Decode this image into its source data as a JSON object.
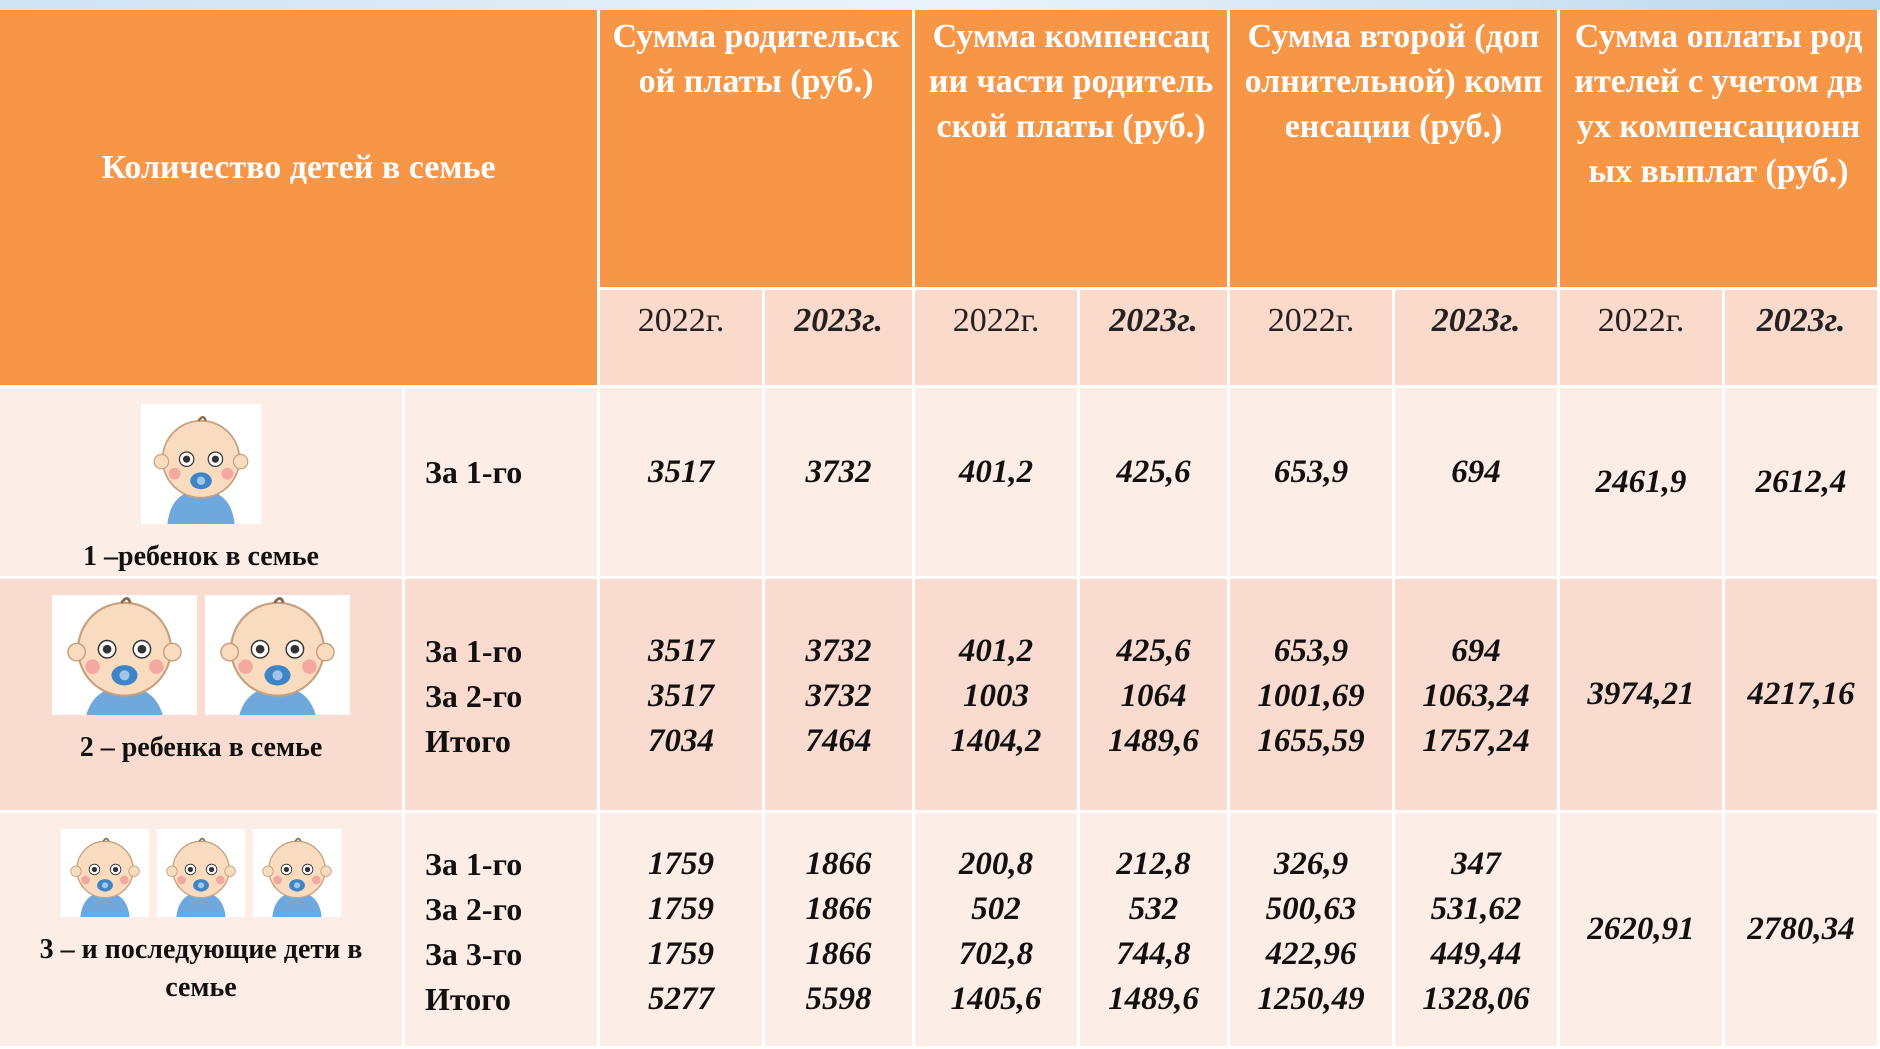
{
  "table": {
    "header": {
      "row_label": "Количество детей в семье",
      "groups": [
        "Сумма родительской платы (руб.)",
        "Сумма компенсации части родительской платы (руб.)",
        "Сумма второй (дополнительной) компенсации (руб.)",
        "Сумма оплаты родителей с учетом двух компенсационных выплат (руб.)"
      ],
      "years": [
        "2022г.",
        "2023г.",
        "2022г.",
        "2023г.",
        "2022г.",
        "2023г.",
        "2022г.",
        "2023г."
      ]
    },
    "rows": [
      {
        "label": "1 –ребенок в семье",
        "lines": [
          {
            "label": "За 1-го",
            "values": [
              "3517",
              "3732",
              "401,2",
              "425,6",
              "653,9",
              "694"
            ]
          }
        ],
        "final": [
          "2461,9",
          "2612,4"
        ]
      },
      {
        "label": "2 – ребенка в семье",
        "lines": [
          {
            "label": "За 1-го",
            "values": [
              "3517",
              "3732",
              "401,2",
              "425,6",
              "653,9",
              "694"
            ]
          },
          {
            "label": "За 2-го",
            "values": [
              "3517",
              "3732",
              "1003",
              "1064",
              "1001,69",
              "1063,24"
            ]
          }
        ],
        "total": {
          "label": "Итого",
          "values": [
            "7034",
            "7464",
            "1404,2",
            "1489,6",
            "1655,59",
            "1757,24"
          ]
        },
        "final": [
          "3974,21",
          "4217,16"
        ]
      },
      {
        "label": "3 – и последующие дети в семье",
        "lines": [
          {
            "label": "За 1-го",
            "values": [
              "1759",
              "1866",
              "200,8",
              "212,8",
              "326,9",
              "347"
            ]
          },
          {
            "label": "За 2-го",
            "values": [
              "1759",
              "1866",
              "502",
              "532",
              "500,63",
              "531,62"
            ]
          },
          {
            "label": "За 3-го",
            "values": [
              "1759",
              "1866",
              "702,8",
              "744,8",
              "422,96",
              "449,44"
            ]
          }
        ],
        "total": {
          "label": "Итого",
          "values": [
            "5277",
            "5598",
            "1405,6",
            "1489,6",
            "1250,49",
            "1328,06"
          ]
        },
        "final": [
          "2620,91",
          "2780,34"
        ]
      }
    ]
  }
}
